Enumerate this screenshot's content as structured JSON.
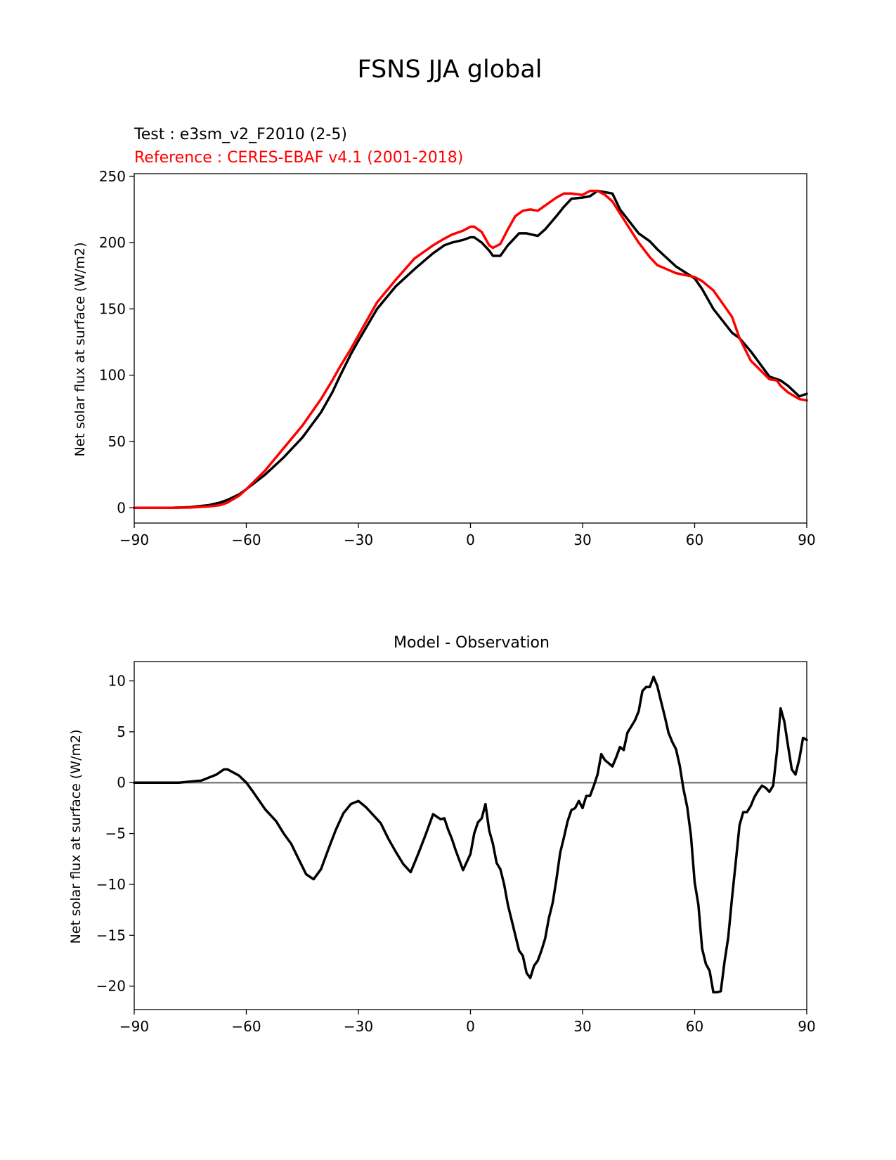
{
  "figure": {
    "title": "FSNS JJA global"
  },
  "chart_data": [
    {
      "type": "line",
      "test_label": "Test : e3sm_v2_F2010 (2-5)",
      "reference_label": "Reference : CERES-EBAF v4.1 (2001-2018)",
      "title": "",
      "xlabel": "",
      "ylabel": "Net solar flux at surface (W/m2)",
      "xlim": [
        -90,
        90
      ],
      "ylim": [
        -11.5,
        252
      ],
      "xticks": [
        -90,
        -60,
        -30,
        0,
        30,
        60,
        90
      ],
      "xtick_labels": [
        "−90",
        "−60",
        "−30",
        "0",
        "30",
        "60",
        "90"
      ],
      "yticks": [
        0,
        50,
        100,
        150,
        200,
        250
      ],
      "ytick_labels": [
        "0",
        "50",
        "100",
        "150",
        "200",
        "250"
      ],
      "grid": false,
      "series": [
        {
          "color": "#000000",
          "x": [
            -90,
            -80,
            -75,
            -70,
            -67,
            -65,
            -62,
            -60,
            -55,
            -50,
            -45,
            -40,
            -37,
            -35,
            -32,
            -30,
            -25,
            -20,
            -15,
            -10,
            -7,
            -5,
            -2,
            0,
            1,
            3,
            5,
            6,
            8,
            10,
            13,
            15,
            18,
            20,
            23,
            25,
            27,
            30,
            32,
            34,
            36,
            38,
            40,
            45,
            48,
            50,
            55,
            60,
            62,
            65,
            70,
            72,
            75,
            80,
            83,
            85,
            88,
            90
          ],
          "y": [
            0,
            0,
            0.5,
            2,
            4,
            6,
            10,
            14,
            25,
            38,
            53,
            72,
            87,
            99,
            116,
            126,
            150,
            167,
            180,
            192,
            198,
            200,
            202,
            204,
            204,
            200,
            194,
            190,
            190,
            198,
            207,
            207,
            205,
            210,
            220,
            227,
            233,
            234,
            235,
            239,
            238,
            237,
            225,
            207,
            201,
            195,
            182,
            173,
            165,
            150,
            132,
            128,
            118,
            99,
            96,
            92,
            84,
            86
          ]
        },
        {
          "color": "#ff0000",
          "x": [
            -90,
            -80,
            -75,
            -70,
            -67,
            -65,
            -62,
            -60,
            -55,
            -50,
            -45,
            -40,
            -37,
            -35,
            -32,
            -30,
            -25,
            -20,
            -15,
            -10,
            -7,
            -5,
            -2,
            0,
            1,
            3,
            5,
            6,
            8,
            10,
            12,
            14,
            16,
            18,
            20,
            23,
            25,
            27,
            30,
            32,
            34,
            36,
            38,
            40,
            45,
            48,
            50,
            55,
            60,
            62,
            65,
            70,
            72,
            75,
            80,
            82,
            83,
            85,
            88,
            90
          ],
          "y": [
            0,
            0,
            0.2,
            1,
            2,
            4,
            9,
            14,
            28,
            45,
            62,
            82,
            96,
            106,
            120,
            130,
            155,
            172,
            188,
            198,
            203,
            206,
            209,
            212,
            212,
            208,
            198,
            196,
            199,
            210,
            220,
            224,
            225,
            224,
            228,
            234,
            237,
            237,
            236,
            239,
            239,
            236,
            231,
            222,
            200,
            189,
            183,
            177,
            174,
            171,
            164,
            144,
            128,
            111,
            97,
            96,
            92,
            87,
            82,
            81
          ]
        }
      ]
    },
    {
      "type": "line",
      "title": "Model - Observation",
      "xlabel": "",
      "ylabel": "Net solar flux at surface (W/m2)",
      "xlim": [
        -90,
        90
      ],
      "ylim": [
        -22.3,
        11.9
      ],
      "xticks": [
        -90,
        -60,
        -30,
        0,
        30,
        60,
        90
      ],
      "xtick_labels": [
        "−90",
        "−60",
        "−30",
        "0",
        "30",
        "60",
        "90"
      ],
      "yticks": [
        10,
        5,
        0,
        -5,
        -10,
        -15,
        -20
      ],
      "ytick_labels": [
        "10",
        "5",
        "0",
        "−5",
        "−10",
        "−15",
        "−20"
      ],
      "grid": false,
      "zero_line": {
        "y": 0,
        "color": "#808080"
      },
      "series": [
        {
          "color": "#000000",
          "x": [
            -90,
            -78,
            -72,
            -68,
            -66,
            -65,
            -64,
            -62,
            -60,
            -58,
            -55,
            -52,
            -50,
            -48,
            -46,
            -44,
            -42,
            -40,
            -38,
            -36,
            -34,
            -32,
            -30,
            -28,
            -26,
            -24,
            -22,
            -20,
            -18,
            -16,
            -14,
            -12,
            -10,
            -8,
            -7,
            -6,
            -5,
            -4,
            -2,
            0,
            1,
            2,
            3,
            4,
            5,
            6,
            7,
            8,
            9,
            10,
            11,
            12,
            13,
            14,
            15,
            16,
            17,
            18,
            19,
            20,
            21,
            22,
            23,
            24,
            25,
            26,
            27,
            28,
            29,
            30,
            31,
            32,
            33,
            34,
            35,
            36,
            37,
            38,
            39,
            40,
            41,
            42,
            43,
            44,
            45,
            46,
            47,
            48,
            49,
            50,
            51,
            52,
            53,
            54,
            55,
            56,
            57,
            58,
            59,
            60,
            61,
            62,
            63,
            64,
            65,
            66,
            67,
            68,
            69,
            70,
            71,
            72,
            73,
            74,
            75,
            76,
            77,
            78,
            79,
            80,
            81,
            82,
            83,
            84,
            85,
            86,
            87,
            88,
            89,
            90
          ],
          "y": [
            0,
            0,
            0.2,
            0.8,
            1.3,
            1.3,
            1.1,
            0.7,
            0,
            -1,
            -2.6,
            -3.8,
            -5,
            -6,
            -7.5,
            -9,
            -9.5,
            -8.5,
            -6.5,
            -4.6,
            -3,
            -2.1,
            -1.8,
            -2.4,
            -3.2,
            -4,
            -5.5,
            -6.8,
            -8,
            -8.8,
            -7,
            -5.1,
            -3.1,
            -3.6,
            -3.5,
            -4.6,
            -5.5,
            -6.6,
            -8.6,
            -7,
            -5,
            -3.9,
            -3.5,
            -2.1,
            -4.7,
            -6,
            -7.9,
            -8.5,
            -10,
            -12,
            -13.5,
            -15,
            -16.5,
            -17,
            -18.7,
            -19.2,
            -18,
            -17.5,
            -16.5,
            -15.3,
            -13.3,
            -11.8,
            -9.5,
            -6.9,
            -5.4,
            -3.8,
            -2.7,
            -2.5,
            -1.8,
            -2.5,
            -1.3,
            -1.3,
            -0.3,
            0.8,
            2.8,
            2.2,
            1.9,
            1.6,
            2.5,
            3.5,
            3.2,
            4.9,
            5.5,
            6.1,
            7,
            9,
            9.4,
            9.4,
            10.4,
            9.5,
            8,
            6.5,
            4.9,
            4,
            3.3,
            1.7,
            -0.6,
            -2.4,
            -5.2,
            -9.8,
            -12,
            -16.3,
            -17.8,
            -18.5,
            -20.6,
            -20.6,
            -20.5,
            -17.6,
            -15.2,
            -11.3,
            -7.8,
            -4.2,
            -2.9,
            -2.9,
            -2.3,
            -1.4,
            -0.8,
            -0.3,
            -0.5,
            -0.9,
            -0.3,
            3,
            7.3,
            6,
            3.6,
            1.3,
            0.8,
            2.3,
            4.4,
            4.2
          ]
        }
      ]
    }
  ]
}
